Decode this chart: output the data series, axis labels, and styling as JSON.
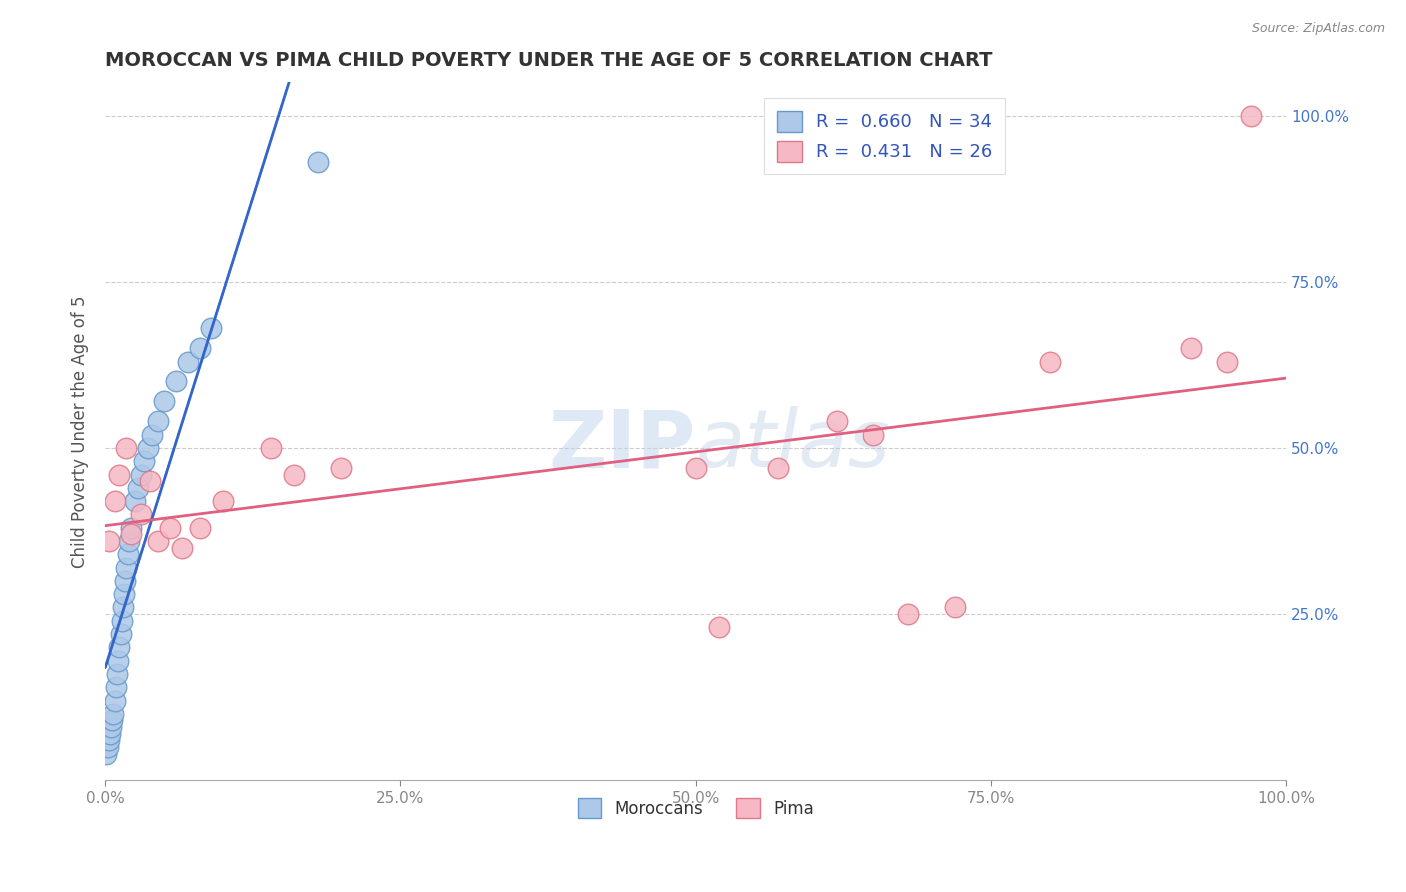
{
  "title": "MOROCCAN VS PIMA CHILD POVERTY UNDER THE AGE OF 5 CORRELATION CHART",
  "source": "Source: ZipAtlas.com",
  "ylabel": "Child Poverty Under the Age of 5",
  "xlabel": "",
  "xlim": [
    0.0,
    1.0
  ],
  "ylim": [
    0.0,
    1.05
  ],
  "xtick_labels": [
    "0.0%",
    "25.0%",
    "50.0%",
    "75.0%",
    "100.0%"
  ],
  "xtick_vals": [
    0.0,
    0.25,
    0.5,
    0.75,
    1.0
  ],
  "ytick_labels": [
    "25.0%",
    "50.0%",
    "75.0%",
    "100.0%"
  ],
  "ytick_vals": [
    0.25,
    0.5,
    0.75,
    1.0
  ],
  "moroccan_color": "#adc8e8",
  "moroccan_edge": "#6699cc",
  "pima_color": "#f5b8c4",
  "pima_edge": "#e07888",
  "line_moroccan": "#3366cc",
  "line_pima": "#e06080",
  "R_moroccan": 0.66,
  "N_moroccan": 34,
  "R_pima": 0.431,
  "N_pima": 26,
  "background_color": "#ffffff",
  "grid_color": "#cccccc",
  "moroccan_x": [
    0.001,
    0.002,
    0.003,
    0.004,
    0.005,
    0.006,
    0.007,
    0.008,
    0.009,
    0.01,
    0.011,
    0.012,
    0.013,
    0.014,
    0.015,
    0.016,
    0.017,
    0.018,
    0.019,
    0.02,
    0.022,
    0.025,
    0.028,
    0.03,
    0.033,
    0.036,
    0.04,
    0.045,
    0.05,
    0.06,
    0.07,
    0.08,
    0.09,
    0.18
  ],
  "moroccan_y": [
    0.04,
    0.05,
    0.06,
    0.07,
    0.08,
    0.09,
    0.1,
    0.12,
    0.14,
    0.16,
    0.18,
    0.2,
    0.22,
    0.24,
    0.26,
    0.28,
    0.3,
    0.32,
    0.34,
    0.36,
    0.38,
    0.42,
    0.44,
    0.46,
    0.48,
    0.5,
    0.52,
    0.54,
    0.57,
    0.6,
    0.63,
    0.65,
    0.68,
    0.93
  ],
  "pima_x": [
    0.003,
    0.008,
    0.012,
    0.018,
    0.022,
    0.03,
    0.038,
    0.045,
    0.055,
    0.065,
    0.08,
    0.1,
    0.14,
    0.16,
    0.2,
    0.5,
    0.52,
    0.57,
    0.62,
    0.65,
    0.68,
    0.72,
    0.8,
    0.92,
    0.95,
    0.97
  ],
  "pima_y": [
    0.36,
    0.42,
    0.46,
    0.5,
    0.37,
    0.4,
    0.45,
    0.36,
    0.38,
    0.35,
    0.38,
    0.42,
    0.5,
    0.46,
    0.47,
    0.47,
    0.23,
    0.47,
    0.54,
    0.52,
    0.25,
    0.26,
    0.63,
    0.65,
    0.63,
    1.0
  ]
}
